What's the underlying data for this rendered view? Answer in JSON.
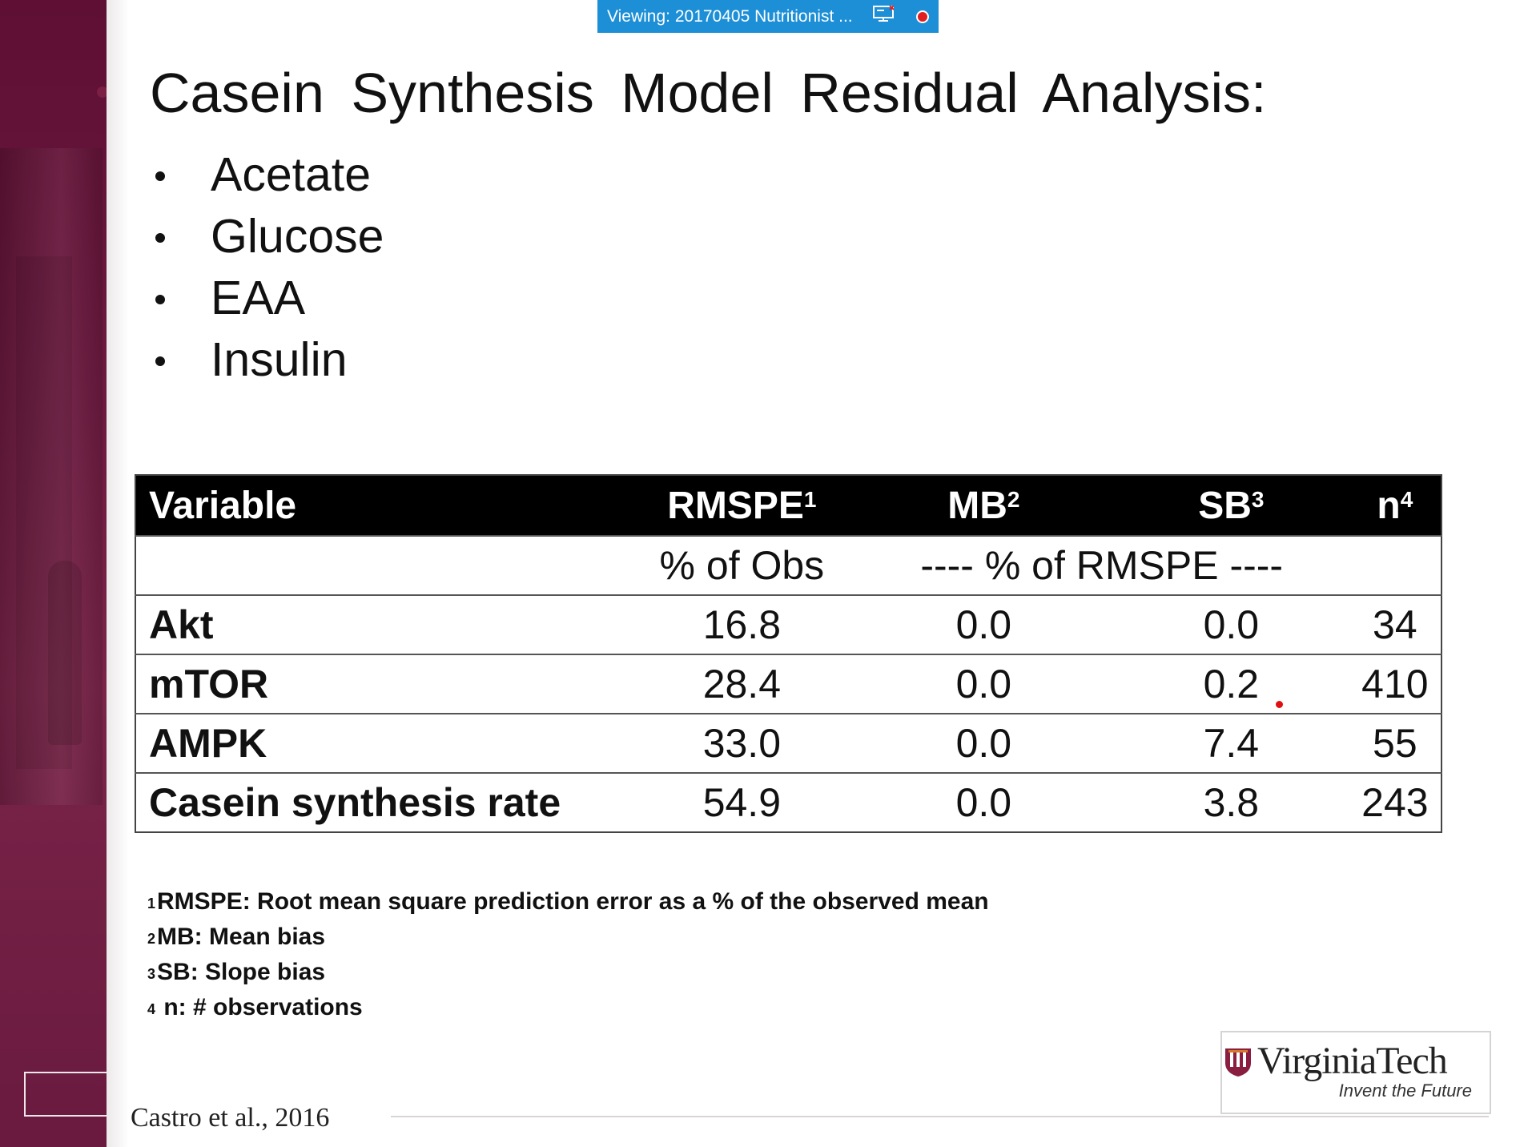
{
  "viewing_bar": {
    "label": "Viewing: 20170405 Nutritionist ...",
    "screen_icon": "screen-share-icon",
    "record_icon": "record-icon"
  },
  "slide": {
    "title": "Casein  Synthesis  Model  Residual  Analysis:",
    "bullets": [
      "Acetate",
      "Glucose",
      "EAA",
      "Insulin"
    ],
    "table": {
      "headers": [
        {
          "label": "Variable",
          "sup": ""
        },
        {
          "label": "RMSPE",
          "sup": "1"
        },
        {
          "label": "MB",
          "sup": "2"
        },
        {
          "label": "SB",
          "sup": "3"
        },
        {
          "label": "n",
          "sup": "4"
        }
      ],
      "units": {
        "rmspe": "% of Obs",
        "bias": "---- % of RMSPE ----"
      },
      "rows": [
        {
          "variable": "Akt",
          "rmspe": "16.8",
          "mb": "0.0",
          "sb": "0.0",
          "n": "34"
        },
        {
          "variable": "mTOR",
          "rmspe": "28.4",
          "mb": "0.0",
          "sb": "0.2",
          "n": "410"
        },
        {
          "variable": "AMPK",
          "rmspe": "33.0",
          "mb": "0.0",
          "sb": "7.4",
          "n": "55"
        },
        {
          "variable": "Casein synthesis rate",
          "rmspe": "54.9",
          "mb": "0.0",
          "sb": "3.8",
          "n": "243"
        }
      ]
    },
    "footnotes": [
      {
        "sup": "1",
        "text": "RMSPE: Root mean square prediction error as a % of the observed mean"
      },
      {
        "sup": "2",
        "text": "MB: Mean bias"
      },
      {
        "sup": "3",
        "text": "SB: Slope bias"
      },
      {
        "sup": "4",
        "text": " n: # observations"
      }
    ],
    "citation": "Castro et al., 2016",
    "logo": {
      "name": "VirginiaTech",
      "tagline": "Invent the Future"
    }
  },
  "colors": {
    "sidebar": "#6d1a40",
    "viewing_bar": "#1d8fd6",
    "table_header_bg": "#000000"
  }
}
